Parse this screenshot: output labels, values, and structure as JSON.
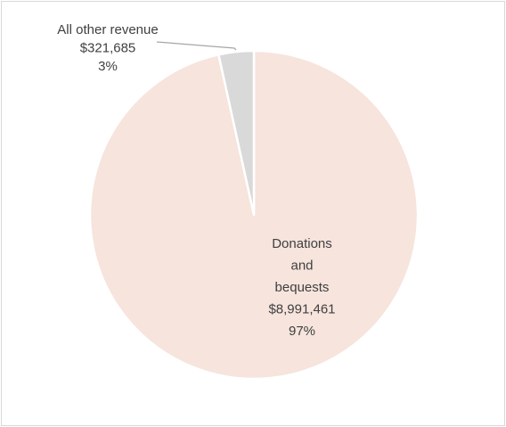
{
  "chart_data": {
    "type": "pie",
    "slices": [
      {
        "label": "Donations and bequests",
        "label_lines": [
          "Donations",
          "and",
          "bequests",
          "$8,991,461",
          "97%"
        ],
        "value": 8991461,
        "percent_label": "97%",
        "value_label": "$8,991,461",
        "color": "#f6e4dd"
      },
      {
        "label": "All other revenue",
        "label_lines": [
          "All other revenue",
          "$321,685",
          "3%"
        ],
        "value": 321685,
        "percent_label": "3%",
        "value_label": "$321,685",
        "color": "#d9d9d9"
      }
    ],
    "start_angle_deg": 0,
    "direction": "clockwise",
    "slice_border_color": "#ffffff",
    "leader_line_color": "#a6a6a6",
    "legend": "none"
  }
}
